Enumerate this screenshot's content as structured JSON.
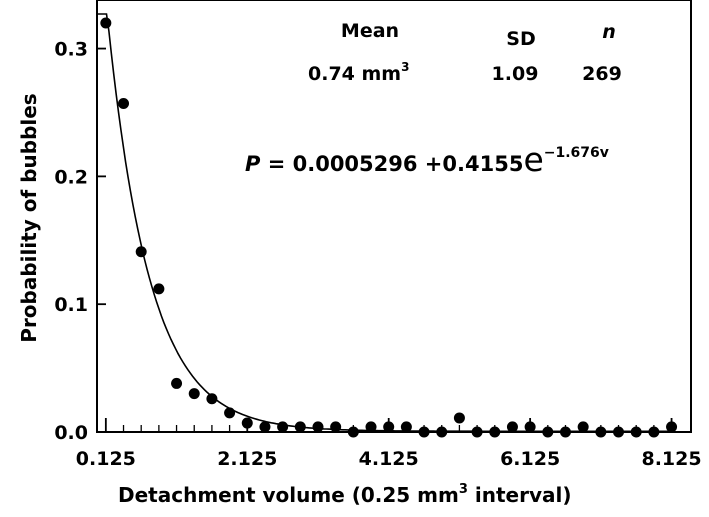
{
  "chart_data": {
    "type": "scatter",
    "xlabel": "Detachment volume  (0.25 mm",
    "xlabel_sup": "3",
    "xlabel_tail": " interval)",
    "ylabel": "Probability of bubbles",
    "xlim": [
      0.0,
      8.4
    ],
    "ylim": [
      0.0,
      0.338
    ],
    "x_ticks": [
      0.125,
      2.125,
      4.125,
      6.125,
      8.125
    ],
    "x_tick_labels": [
      "0.125",
      "2.125",
      "4.125",
      "6.125",
      "8.125"
    ],
    "y_ticks": [
      0.0,
      0.1,
      0.2,
      0.3
    ],
    "y_tick_labels": [
      "0.0",
      "0.1",
      "0.2",
      "0.3"
    ],
    "x_minor_ticks": [
      0.125,
      0.375,
      0.625,
      0.875,
      1.125,
      1.375,
      1.625,
      1.875,
      2.125,
      2.375,
      2.625,
      2.875,
      3.125,
      3.375,
      3.625,
      3.875,
      4.125,
      4.375,
      4.625,
      4.875,
      5.125,
      5.375,
      5.625,
      5.875,
      6.125,
      6.375,
      6.625,
      6.875,
      7.125,
      7.375,
      7.625,
      7.875,
      8.125
    ],
    "points": {
      "x": [
        0.125,
        0.375,
        0.625,
        0.875,
        1.125,
        1.375,
        1.625,
        1.875,
        2.125,
        2.375,
        2.625,
        2.875,
        3.125,
        3.375,
        3.625,
        3.875,
        4.125,
        4.375,
        4.625,
        4.875,
        5.125,
        5.375,
        5.625,
        5.875,
        6.125,
        6.375,
        6.625,
        6.875,
        7.125,
        7.375,
        7.625,
        7.875,
        8.125
      ],
      "y": [
        0.32,
        0.257,
        0.141,
        0.112,
        0.038,
        0.03,
        0.026,
        0.015,
        0.007,
        0.004,
        0.004,
        0.004,
        0.004,
        0.004,
        0.0,
        0.004,
        0.004,
        0.004,
        0.0,
        0.0,
        0.011,
        0.0,
        0.0,
        0.004,
        0.004,
        0.0,
        0.0,
        0.004,
        0.0,
        0.0,
        0.0,
        0.0,
        0.004
      ]
    },
    "fit": {
      "equation_var": "P",
      "equation_body": " = 0.0005296 +0.4155",
      "equation_base": "e",
      "equation_exponent": "−1.676v",
      "a": 0.0005296,
      "b": 0.4155,
      "k": 1.676,
      "x_range": [
        0.0,
        8.1
      ]
    },
    "stats": {
      "mean_header": "Mean",
      "sd_header": "SD",
      "n_header": "n",
      "mean_value": "0.74 mm",
      "mean_unit_sup": "3",
      "sd_value": "1.09",
      "n_value": "269"
    }
  }
}
